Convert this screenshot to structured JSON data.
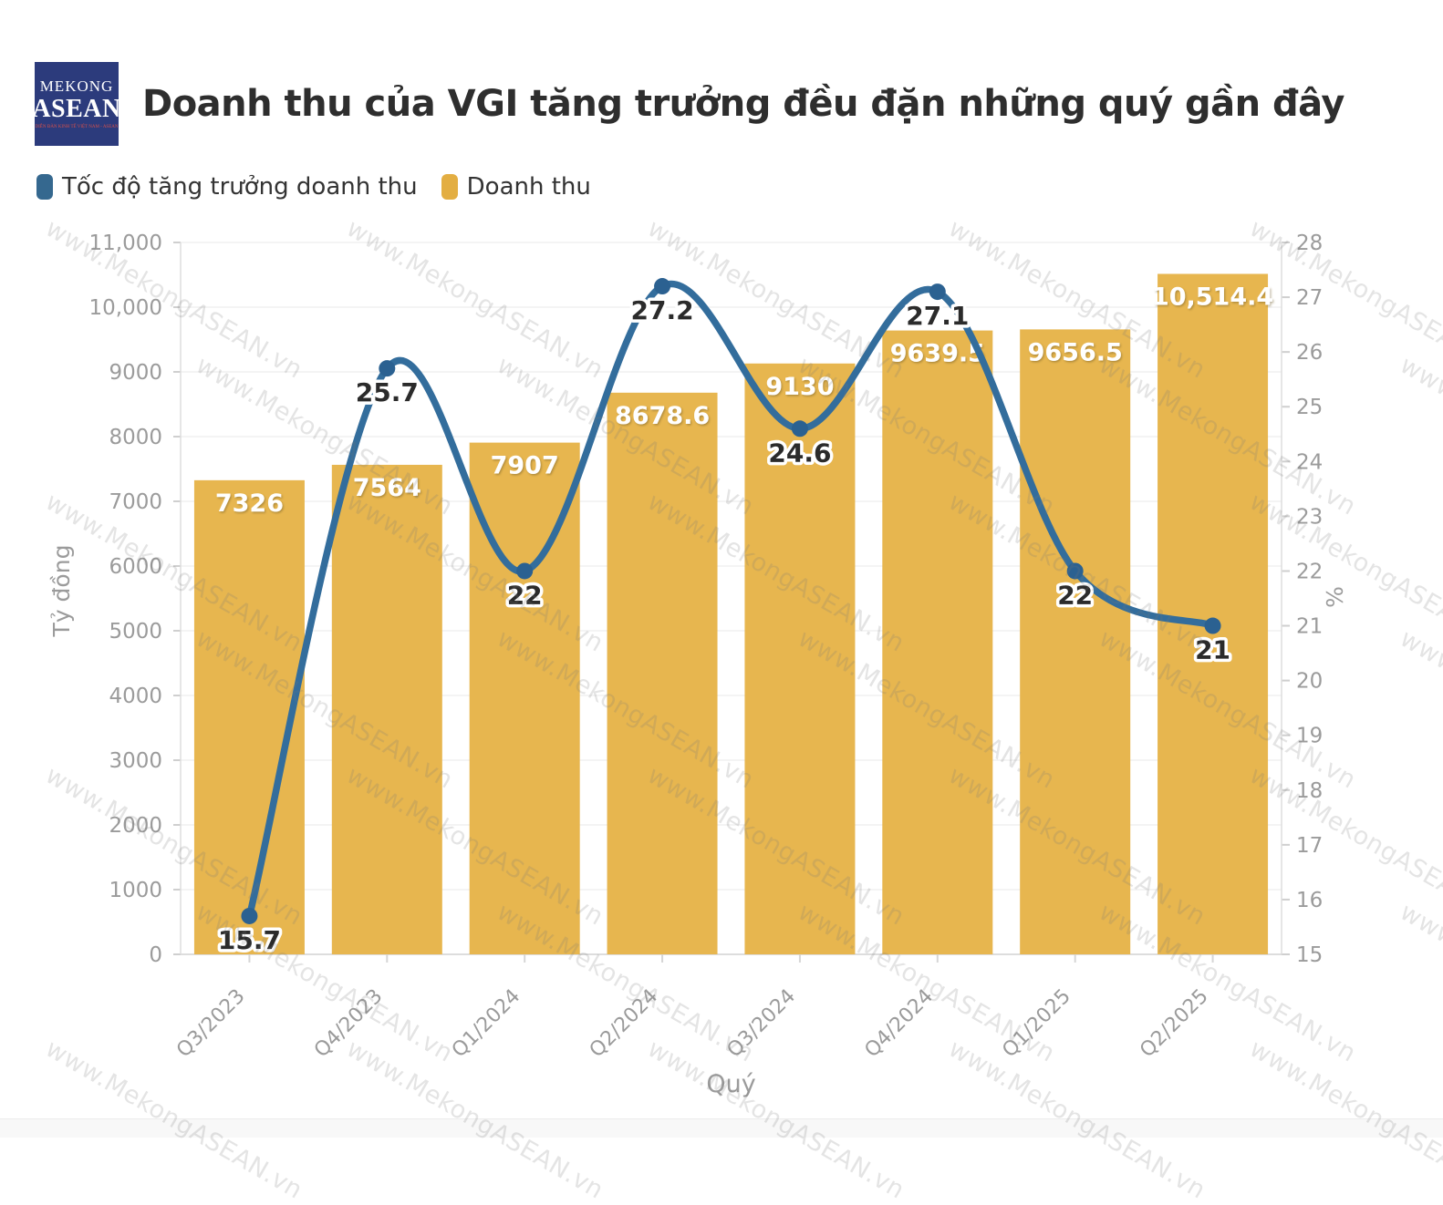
{
  "header": {
    "logo": {
      "line1": "MEKONG",
      "line2": "ASEAN",
      "tagline": "DIỄN ĐÀN KINH TẾ VIỆT NAM - ASEAN"
    },
    "title": "Doanh thu của VGI tăng trưởng đều đặn những quý gần đây"
  },
  "legend": {
    "items": [
      {
        "label": "Tốc độ tăng trưởng doanh thu",
        "color": "#35688f"
      },
      {
        "label": "Doanh thu",
        "color": "#e3ae42"
      }
    ]
  },
  "watermark": {
    "text": "www.MekongASEAN.vn"
  },
  "chart_data": {
    "type": "bar",
    "subtype": "combo-bar-line-dual-axis",
    "title": "Doanh thu của VGI tăng trưởng đều đặn những quý gần đây",
    "categories": [
      "Q3/2023",
      "Q4/2023",
      "Q1/2024",
      "Q2/2024",
      "Q3/2024",
      "Q4/2024",
      "Q1/2025",
      "Q2/2025"
    ],
    "series": [
      {
        "name": "Doanh thu",
        "type": "bar",
        "axis": "left",
        "values": [
          7326,
          7564,
          7907,
          8678.6,
          9130,
          9639.5,
          9656.5,
          10514.4
        ],
        "labels": [
          "7326",
          "7564",
          "7907",
          "8678.6",
          "9130",
          "9639.5",
          "9656.5",
          "10,514.4"
        ],
        "color": "#e7b64f",
        "label_color": "#ffffff"
      },
      {
        "name": "Tốc độ tăng trưởng doanh thu",
        "type": "line",
        "axis": "right",
        "values": [
          15.7,
          25.7,
          22,
          27.2,
          24.6,
          27.1,
          22,
          21
        ],
        "labels": [
          "15.7",
          "25.7",
          "22",
          "27.2",
          "24.6",
          "27.1",
          "22",
          "21"
        ],
        "color": "#336d9c",
        "marker_color": "#2b6191",
        "label_color": "#2b2b2b"
      }
    ],
    "left_axis": {
      "title": "Tỷ đồng",
      "min": 0,
      "max": 11000,
      "tick_step": 1000,
      "tick_labels": [
        "0",
        "1000",
        "2000",
        "3000",
        "4000",
        "5000",
        "6000",
        "7000",
        "8000",
        "9000",
        "10,000",
        "11,000"
      ]
    },
    "right_axis": {
      "title": "%",
      "min": 15,
      "max": 28,
      "tick_step": 1,
      "tick_labels": [
        "15",
        "16",
        "17",
        "18",
        "19",
        "20",
        "21",
        "22",
        "23",
        "24",
        "25",
        "26",
        "27",
        "28"
      ]
    },
    "x_axis": {
      "title": "Quý"
    },
    "grid": true,
    "legend_position": "top-left",
    "axis_text_color": "#9b9b9b",
    "grid_color": "#e8e8e8",
    "axis_line_color": "#dddddd"
  }
}
